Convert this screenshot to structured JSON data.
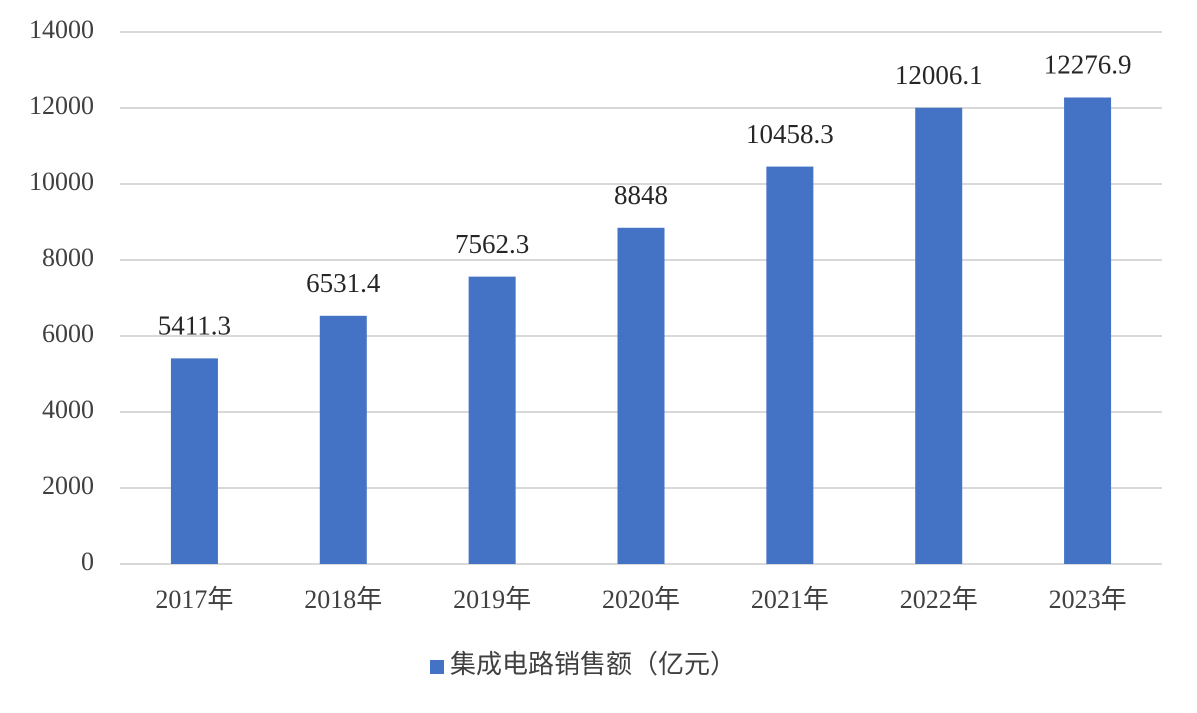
{
  "chart_data": {
    "type": "bar",
    "categories": [
      "2017年",
      "2018年",
      "2019年",
      "2020年",
      "2021年",
      "2022年",
      "2023年"
    ],
    "series": [
      {
        "name": "集成电路销售额（亿元）",
        "color": "#4472c4",
        "values": [
          5411.3,
          6531.4,
          7562.3,
          8848,
          10458.3,
          12006.1,
          12276.9
        ]
      }
    ],
    "ylim": [
      0,
      14000
    ],
    "yticks": [
      0,
      2000,
      4000,
      6000,
      8000,
      10000,
      12000,
      14000
    ],
    "grid": true,
    "legend": "bottom"
  }
}
